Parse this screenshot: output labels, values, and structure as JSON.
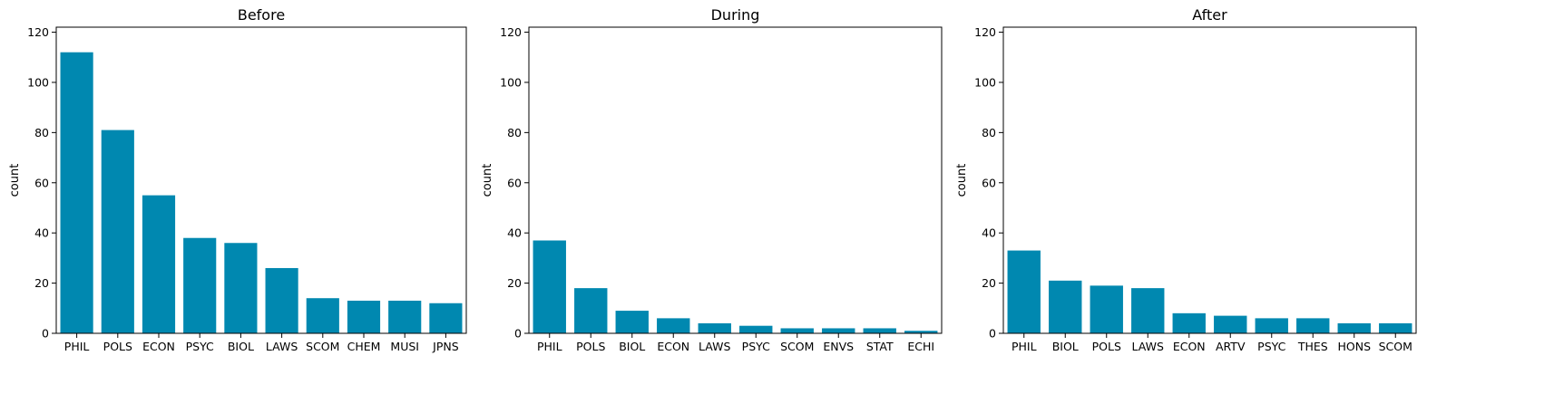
{
  "chart_data": [
    {
      "type": "bar",
      "title": "Before",
      "ylabel": "count",
      "ylim": [
        0,
        122
      ],
      "yticks": [
        0,
        20,
        40,
        60,
        80,
        100,
        120
      ],
      "categories": [
        "PHIL",
        "POLS",
        "ECON",
        "PSYC",
        "BIOL",
        "LAWS",
        "SCOM",
        "CHEM",
        "MUSI",
        "JPNS"
      ],
      "values": [
        112,
        81,
        55,
        38,
        36,
        26,
        14,
        13,
        13,
        12
      ],
      "color": "#0088b0",
      "grid": false
    },
    {
      "type": "bar",
      "title": "During",
      "ylabel": "count",
      "ylim": [
        0,
        122
      ],
      "yticks": [
        0,
        20,
        40,
        60,
        80,
        100,
        120
      ],
      "categories": [
        "PHIL",
        "POLS",
        "BIOL",
        "ECON",
        "LAWS",
        "PSYC",
        "SCOM",
        "ENVS",
        "STAT",
        "ECHI"
      ],
      "values": [
        37,
        18,
        9,
        6,
        4,
        3,
        2,
        2,
        2,
        1
      ],
      "color": "#0088b0",
      "grid": false
    },
    {
      "type": "bar",
      "title": "After",
      "ylabel": "count",
      "ylim": [
        0,
        122
      ],
      "yticks": [
        0,
        20,
        40,
        60,
        80,
        100,
        120
      ],
      "categories": [
        "PHIL",
        "BIOL",
        "POLS",
        "LAWS",
        "ECON",
        "ARTV",
        "PSYC",
        "THES",
        "HONS",
        "SCOM"
      ],
      "values": [
        33,
        21,
        19,
        18,
        8,
        7,
        6,
        6,
        4,
        4
      ],
      "color": "#0088b0",
      "grid": false
    }
  ]
}
